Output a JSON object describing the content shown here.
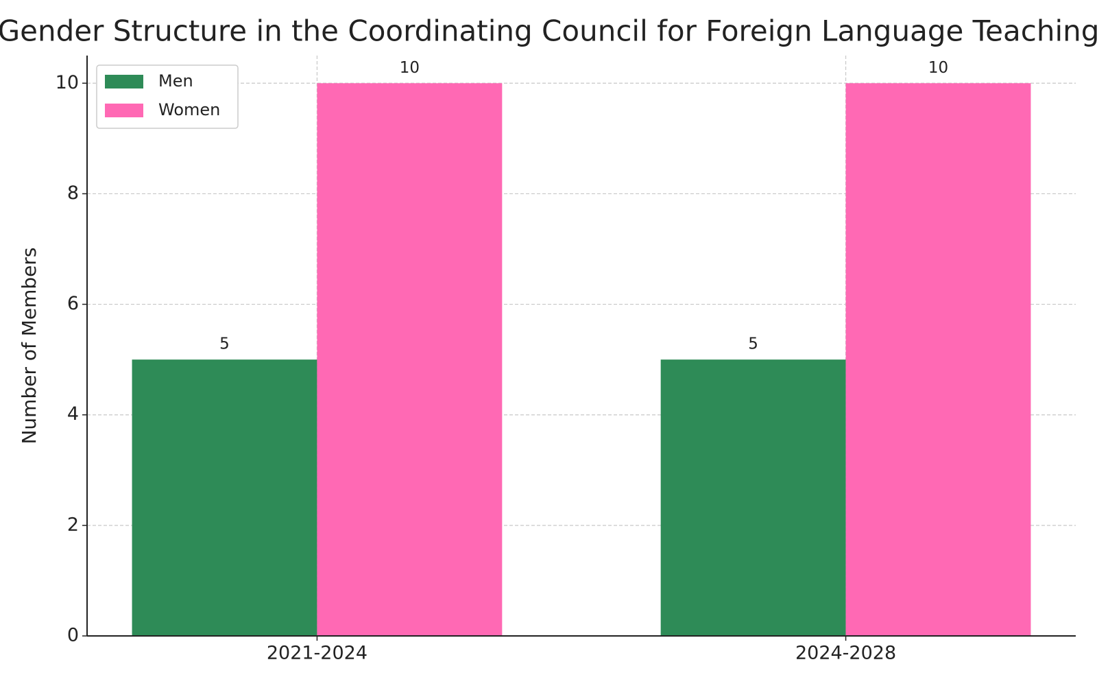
{
  "chart_data": {
    "type": "bar",
    "title": "Gender Structure in the Coordinating Council for Foreign Language Teaching",
    "ylabel": "Number of Members",
    "categories": [
      "2021-2024",
      "2024-2028"
    ],
    "series": [
      {
        "name": "Men",
        "color": "#2e8b57",
        "values": [
          5,
          5
        ]
      },
      {
        "name": "Women",
        "color": "#ff69b4",
        "values": [
          10,
          10
        ]
      }
    ],
    "ylim": [
      0,
      10.5
    ],
    "yticks": [
      0,
      2,
      4,
      6,
      8,
      10
    ],
    "grid": true,
    "legend": "upper left"
  }
}
